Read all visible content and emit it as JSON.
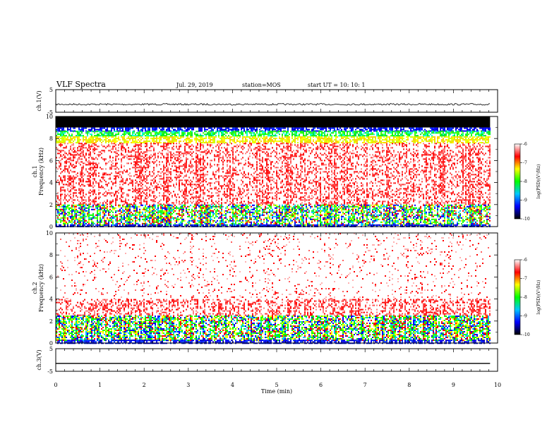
{
  "header": {
    "title": "VLF Spectra",
    "date": "Jul. 29, 2019",
    "station": "station=MOS",
    "start": "start UT =   10: 10: 1"
  },
  "colors": {
    "spectrum_scale": [
      "#000000",
      "#0000ff",
      "#00c8ff",
      "#00ff00",
      "#ffff00",
      "#ff0000",
      "#ffffff"
    ],
    "trace": "#000000"
  },
  "chart_data": [
    {
      "type": "line",
      "name": "ch1-waveform",
      "ylabel": "ch.1(V)",
      "ylim": [
        -5,
        5
      ],
      "yticks": [
        "5",
        "-5"
      ],
      "x": [
        0,
        9.83
      ],
      "y_level": [
        -1.5,
        -1.5
      ],
      "xlim": [
        0,
        10
      ]
    },
    {
      "type": "heatmap",
      "name": "ch1-spectrogram",
      "ylabel": "ch.1\nFrequency (kHz)",
      "ylim": [
        0,
        10
      ],
      "yticks": [
        "0",
        "2",
        "4",
        "6",
        "8",
        "10"
      ],
      "xlim": [
        0,
        10
      ],
      "x_data_end": 9.83,
      "colorbar": {
        "label": "log(PSD)(V²/Hz)",
        "range": [
          -10,
          -6
        ],
        "ticks": [
          "-6",
          "-7",
          "-8",
          "-9",
          "-10"
        ]
      },
      "bands_khz": [
        {
          "from": 9.0,
          "to": 10.0,
          "level": "black"
        },
        {
          "from": 8.7,
          "to": 9.0,
          "level": "blue"
        },
        {
          "from": 8.2,
          "to": 8.7,
          "level": "green"
        },
        {
          "from": 7.6,
          "to": 8.2,
          "level": "yellow"
        },
        {
          "from": 2.0,
          "to": 7.6,
          "level": "red-dense"
        },
        {
          "from": 0.2,
          "to": 2.0,
          "level": "green-yellow"
        },
        {
          "from": 0.0,
          "to": 0.2,
          "level": "blue"
        }
      ]
    },
    {
      "type": "heatmap",
      "name": "ch2-spectrogram",
      "ylabel": "ch.2\nFrequency (kHz)",
      "ylim": [
        0,
        10
      ],
      "yticks": [
        "0",
        "2",
        "4",
        "6",
        "8",
        "10"
      ],
      "xlim": [
        0,
        10
      ],
      "x_data_end": 9.83,
      "colorbar": {
        "label": "log(PSD)(V²/Hz)",
        "range": [
          -10,
          -6
        ],
        "ticks": [
          "-6",
          "-7",
          "-8",
          "-9",
          "-10"
        ]
      },
      "bands_khz": [
        {
          "from": 4.0,
          "to": 10.0,
          "level": "red-sparse"
        },
        {
          "from": 2.5,
          "to": 4.0,
          "level": "red-dense"
        },
        {
          "from": 0.3,
          "to": 2.5,
          "level": "green-yellow"
        },
        {
          "from": 0.0,
          "to": 0.3,
          "level": "blue"
        }
      ]
    },
    {
      "type": "line",
      "name": "ch3-waveform",
      "ylabel": "ch.3(V)",
      "ylim": [
        -5,
        5
      ],
      "yticks": [
        "5",
        "-5"
      ],
      "x": [
        0,
        9.83
      ],
      "y_level": [
        -1.5,
        -1.5
      ],
      "xlim": [
        0,
        10
      ],
      "xlabel": "Time (min)",
      "xticks": [
        "0",
        "1",
        "2",
        "3",
        "4",
        "5",
        "6",
        "7",
        "8",
        "9",
        "10"
      ]
    }
  ]
}
